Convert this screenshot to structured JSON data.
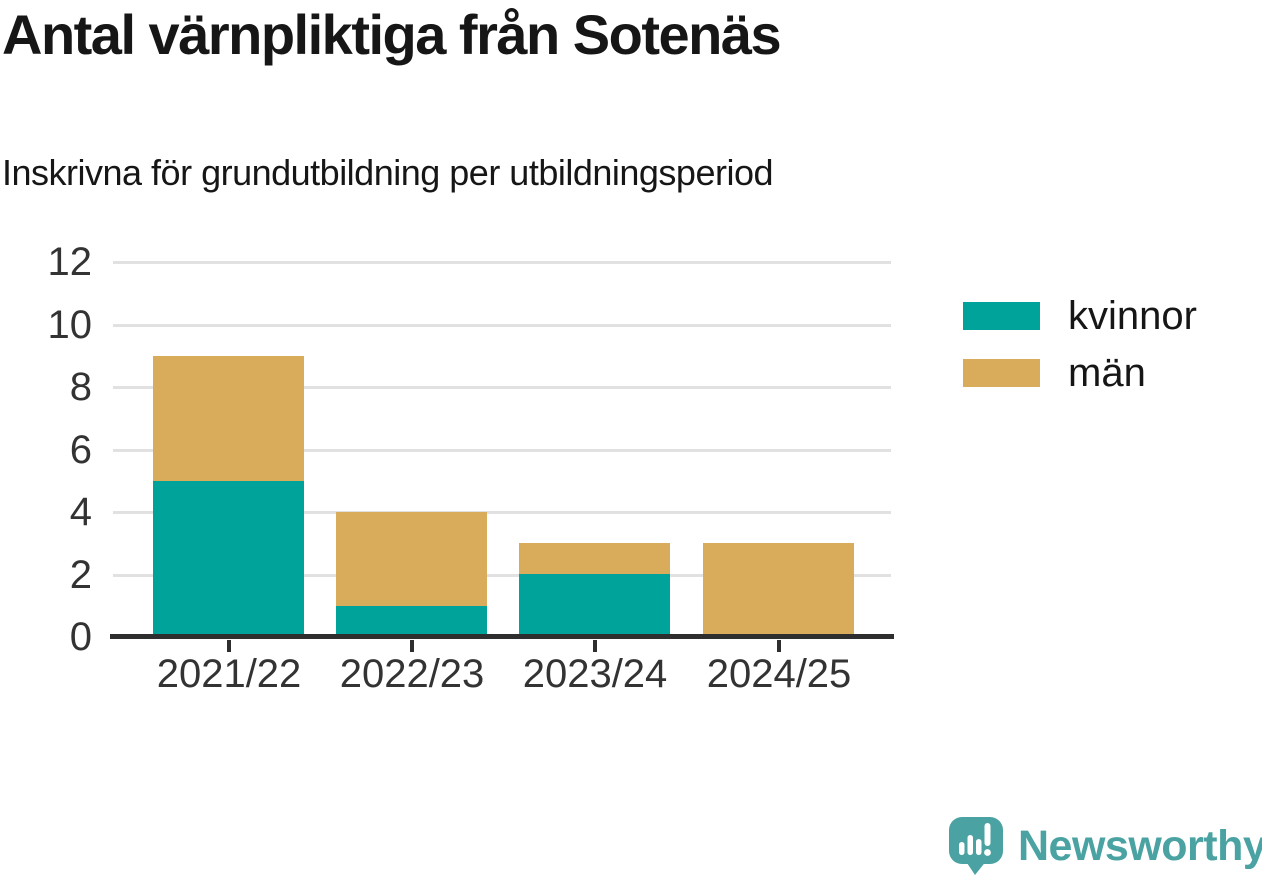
{
  "chart_data": {
    "type": "bar",
    "stacked": true,
    "title": "Antal värnpliktiga från Sotenäs",
    "subtitle": "Inskrivna för grundutbildning per utbildningsperiod",
    "categories": [
      "2021/22",
      "2022/23",
      "2023/24",
      "2024/25"
    ],
    "series": [
      {
        "name": "kvinnor",
        "color": "#00a39a",
        "values": [
          5,
          1,
          2,
          0
        ]
      },
      {
        "name": "män",
        "color": "#d9ac5b",
        "values": [
          4,
          3,
          1,
          3
        ]
      }
    ],
    "totals": [
      9,
      4,
      3,
      3
    ],
    "xlabel": "",
    "ylabel": "",
    "ylim": [
      0,
      12
    ],
    "yticks": [
      0,
      2,
      4,
      6,
      8,
      10,
      12
    ],
    "grid": true,
    "legend_position": "right"
  },
  "branding": {
    "logo_text": "Newsworthy",
    "logo_color": "#4aa3a2",
    "logo_icon": "bar-chart-speech-bubble-icon"
  }
}
